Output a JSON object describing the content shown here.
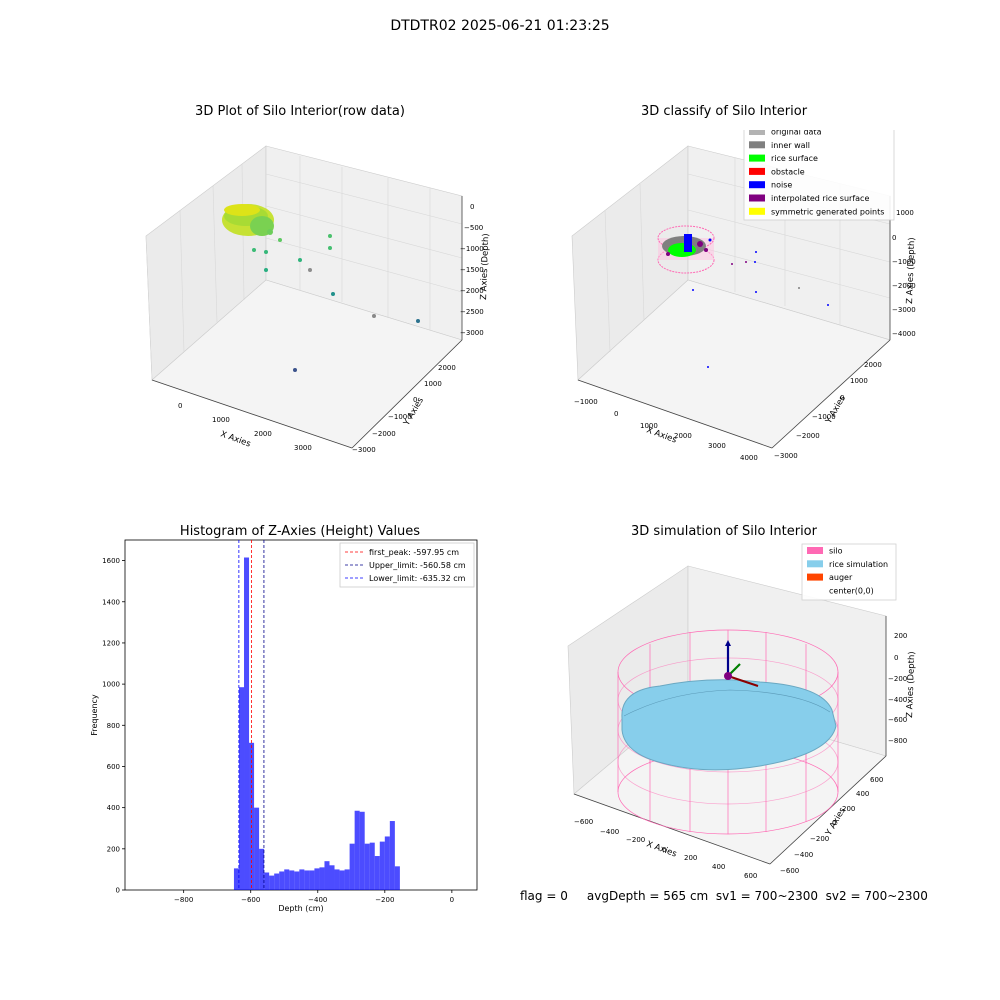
{
  "figure": {
    "title": "DTDTR02 2025-06-21 01:23:25",
    "footer": "flag = 0     avgDepth = 565 cm  sv1 = 700~2300  sv2 = 700~2300"
  },
  "chart_data": [
    {
      "type": "scatter",
      "subtype": "3d",
      "title": "3D Plot of Silo Interior(row data)",
      "xlabel": "X Axies",
      "ylabel": "Y Axies",
      "zlabel": "Z Axies (Depth)",
      "x_ticks": [
        "0",
        "1000",
        "2000",
        "3000"
      ],
      "y_ticks": [
        "2000",
        "1000",
        "0",
        "−1000",
        "−2000",
        "−3000"
      ],
      "z_ticks": [
        "0",
        "−500",
        "−1000",
        "−1500",
        "−2000",
        "−2500",
        "−3000"
      ],
      "colormap": "viridis (by depth)",
      "note": "dense ring-shaped cluster near top-left, sparse points trailing to X≈3000, Z≈−3000"
    },
    {
      "type": "scatter",
      "subtype": "3d",
      "title": "3D classify of Silo Interior",
      "xlabel": "X Axies",
      "ylabel": "Y Axies",
      "zlabel": "Z Axies (Depth)",
      "x_ticks": [
        "−1000",
        "0",
        "1000",
        "2000",
        "3000",
        "4000"
      ],
      "y_ticks": [
        "2000",
        "1000",
        "0",
        "−1000",
        "−2000",
        "−3000"
      ],
      "z_ticks": [
        "1000",
        "0",
        "−1000",
        "−2000",
        "−3000",
        "−4000"
      ],
      "legend_position": "top-right",
      "legend": [
        {
          "label": "original data",
          "color": "#b3b3b3"
        },
        {
          "label": "inner wall",
          "color": "#808080"
        },
        {
          "label": "rice surface",
          "color": "#00ff00"
        },
        {
          "label": "obstacle",
          "color": "#ff0000"
        },
        {
          "label": "noise",
          "color": "#0000ff"
        },
        {
          "label": "interpolated rice surface",
          "color": "#800080"
        },
        {
          "label": "symmetric generated points",
          "color": "#ffff00"
        }
      ]
    },
    {
      "type": "bar",
      "subtype": "histogram",
      "title": "Histogram of Z-Axies (Height) Values",
      "xlabel": "Depth (cm)",
      "ylabel": "Frequency",
      "xlim": [
        -975,
        75
      ],
      "ylim": [
        0,
        1700
      ],
      "x_ticks": [
        -800,
        -600,
        -400,
        -200,
        0
      ],
      "y_ticks": [
        0,
        200,
        400,
        600,
        800,
        1000,
        1200,
        1400,
        1600
      ],
      "bar_color": "#0000ff",
      "bin_width": 15,
      "bins": [
        {
          "start": -650,
          "value": 105
        },
        {
          "start": -635,
          "value": 985
        },
        {
          "start": -620,
          "value": 1615
        },
        {
          "start": -605,
          "value": 715
        },
        {
          "start": -590,
          "value": 400
        },
        {
          "start": -575,
          "value": 200
        },
        {
          "start": -560,
          "value": 85
        },
        {
          "start": -545,
          "value": 70
        },
        {
          "start": -530,
          "value": 80
        },
        {
          "start": -515,
          "value": 90
        },
        {
          "start": -500,
          "value": 100
        },
        {
          "start": -485,
          "value": 95
        },
        {
          "start": -470,
          "value": 90
        },
        {
          "start": -455,
          "value": 100
        },
        {
          "start": -440,
          "value": 95
        },
        {
          "start": -425,
          "value": 95
        },
        {
          "start": -410,
          "value": 105
        },
        {
          "start": -395,
          "value": 110
        },
        {
          "start": -380,
          "value": 140
        },
        {
          "start": -365,
          "value": 120
        },
        {
          "start": -350,
          "value": 100
        },
        {
          "start": -335,
          "value": 95
        },
        {
          "start": -320,
          "value": 100
        },
        {
          "start": -305,
          "value": 225
        },
        {
          "start": -290,
          "value": 385
        },
        {
          "start": -275,
          "value": 380
        },
        {
          "start": -260,
          "value": 225
        },
        {
          "start": -245,
          "value": 230
        },
        {
          "start": -230,
          "value": 165
        },
        {
          "start": -215,
          "value": 235
        },
        {
          "start": -200,
          "value": 260
        },
        {
          "start": -185,
          "value": 335
        },
        {
          "start": -170,
          "value": 115
        }
      ],
      "vlines": [
        {
          "label": "first_peak: -597.95 cm",
          "value": -597.95,
          "color": "#ff0000"
        },
        {
          "label": "Upper_limit: -560.58 cm",
          "value": -560.58,
          "color": "#00008b"
        },
        {
          "label": "Lower_limit: -635.32 cm",
          "value": -635.32,
          "color": "#0000ff"
        }
      ],
      "legend_position": "top-right"
    },
    {
      "type": "scatter",
      "subtype": "3d-surface",
      "title": "3D simulation of Silo Interior",
      "xlabel": "X Axies",
      "ylabel": "Y Axies",
      "zlabel": "Z Axies (Depth)",
      "x_ticks": [
        "−600",
        "−400",
        "−200",
        "0",
        "200",
        "400",
        "600"
      ],
      "y_ticks": [
        "600",
        "400",
        "200",
        "0",
        "−200",
        "−400",
        "−600"
      ],
      "z_ticks": [
        "200",
        "0",
        "−200",
        "−400",
        "−600",
        "−800"
      ],
      "legend_position": "top-right",
      "legend": [
        {
          "label": "silo",
          "color": "#ff69b4"
        },
        {
          "label": "rice simulation",
          "color": "#87ceeb"
        },
        {
          "label": "auger",
          "color": "#ff4500"
        },
        {
          "label": "center(0,0)",
          "color": ""
        }
      ]
    }
  ]
}
